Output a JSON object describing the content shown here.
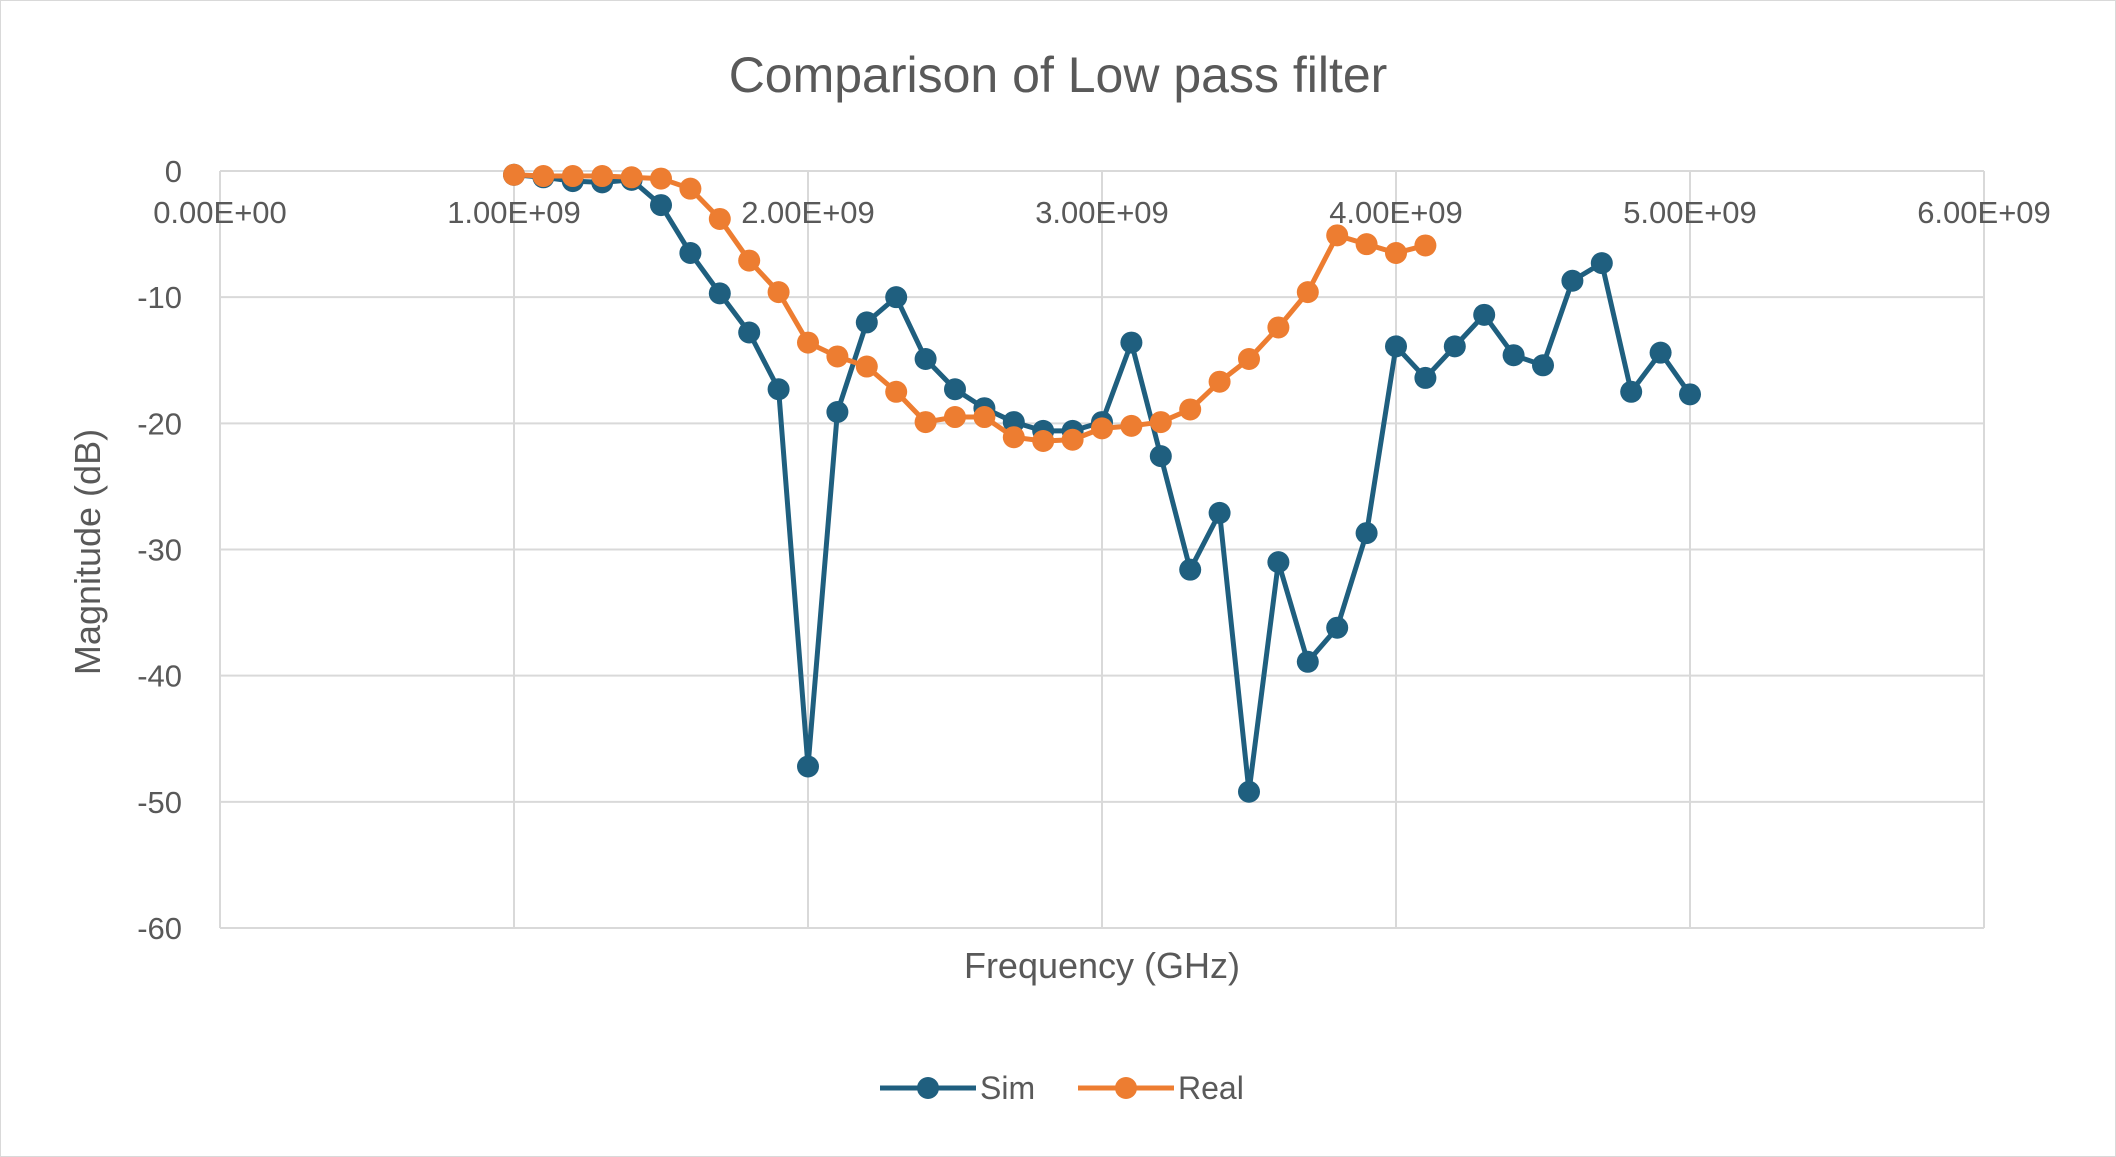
{
  "chart_data": {
    "type": "scatter",
    "title": "Comparison of Low pass filter",
    "xlabel": "Frequency (GHz)",
    "ylabel": "Magnitude (dB)",
    "xlim": [
      0,
      6000000000
    ],
    "ylim": [
      -60,
      0
    ],
    "x_ticks": [
      0,
      1000000000,
      2000000000,
      3000000000,
      4000000000,
      5000000000,
      6000000000
    ],
    "x_tick_labels": [
      "0.00E+00",
      "1.00E+09",
      "2.00E+09",
      "3.00E+09",
      "4.00E+09",
      "5.00E+09",
      "6.00E+09"
    ],
    "y_ticks": [
      0,
      -10,
      -20,
      -30,
      -40,
      -50,
      -60
    ],
    "y_tick_labels": [
      "0",
      "-10",
      "-20",
      "-30",
      "-40",
      "-50",
      "-60"
    ],
    "grid": true,
    "legend_position": "bottom",
    "series": [
      {
        "name": "Sim",
        "color": "#1f5f7f",
        "x": [
          1000000000,
          1100000000,
          1200000000,
          1300000000,
          1400000000,
          1500000000,
          1600000000,
          1700000000,
          1800000000,
          1900000000,
          2000000000,
          2100000000,
          2200000000,
          2300000000,
          2400000000,
          2500000000,
          2600000000,
          2700000000,
          2800000000,
          2900000000,
          3000000000,
          3100000000,
          3200000000,
          3300000000,
          3400000000,
          3500000000,
          3600000000,
          3700000000,
          3800000000,
          3900000000,
          4000000000,
          4100000000,
          4200000000,
          4300000000,
          4400000000,
          4500000000,
          4600000000,
          4700000000,
          4800000000,
          4900000000,
          5000000000
        ],
        "values": [
          -0.3,
          -0.5,
          -0.8,
          -0.9,
          -0.7,
          -2.7,
          -6.5,
          -9.7,
          -12.8,
          -17.3,
          -47.2,
          -19.1,
          -12.0,
          -10.0,
          -14.9,
          -17.3,
          -18.8,
          -19.9,
          -20.6,
          -20.6,
          -19.9,
          -13.6,
          -22.6,
          -31.6,
          -27.1,
          -49.2,
          -31.0,
          -38.9,
          -36.2,
          -28.7,
          -13.9,
          -16.4,
          -13.9,
          -11.4,
          -14.6,
          -15.4,
          -8.7,
          -7.3,
          -17.5,
          -14.4,
          -17.7
        ]
      },
      {
        "name": "Real",
        "color": "#ed7d31",
        "x": [
          1000000000,
          1100000000,
          1200000000,
          1300000000,
          1400000000,
          1500000000,
          1600000000,
          1700000000,
          1800000000,
          1900000000,
          2000000000,
          2100000000,
          2200000000,
          2300000000,
          2400000000,
          2500000000,
          2600000000,
          2700000000,
          2800000000,
          2900000000,
          3000000000,
          3100000000,
          3200000000,
          3300000000,
          3400000000,
          3500000000,
          3600000000,
          3700000000,
          3800000000,
          3900000000,
          4000000000,
          4100000000
        ],
        "values": [
          -0.3,
          -0.4,
          -0.4,
          -0.4,
          -0.5,
          -0.6,
          -1.4,
          -3.8,
          -7.1,
          -9.6,
          -13.6,
          -14.7,
          -15.5,
          -17.5,
          -19.9,
          -19.5,
          -19.5,
          -21.1,
          -21.4,
          -21.3,
          -20.4,
          -20.2,
          -19.9,
          -18.9,
          -16.7,
          -14.9,
          -12.4,
          -9.6,
          -5.1,
          -5.8,
          -6.5,
          -5.9
        ]
      }
    ]
  }
}
